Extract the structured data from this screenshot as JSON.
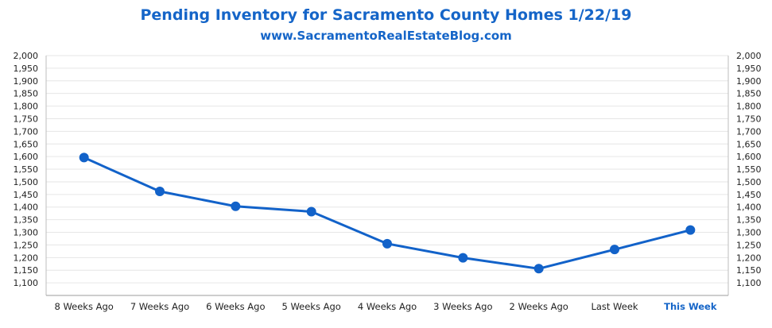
{
  "chart_data": {
    "type": "line",
    "title": "Pending Inventory for Sacramento County Homes 1/22/19",
    "subtitle": "www.SacramentoRealEstateBlog.com",
    "categories": [
      "8 Weeks Ago",
      "7 Weeks Ago",
      "6 Weeks Ago",
      "5 Weeks Ago",
      "4 Weeks Ago",
      "3 Weeks Ago",
      "2 Weeks Ago",
      "Last Week",
      "This Week"
    ],
    "series": [
      {
        "values": [
          1596,
          1462,
          1403,
          1382,
          1255,
          1199,
          1156,
          1232,
          1309
        ]
      }
    ],
    "ylim": [
      1050,
      2000
    ],
    "yticks": [
      1100,
      1150,
      1200,
      1250,
      1300,
      1350,
      1400,
      1450,
      1500,
      1550,
      1600,
      1650,
      1700,
      1750,
      1800,
      1850,
      1900,
      1950,
      2000
    ],
    "yaxis_both_sides": true,
    "grid": true,
    "highlight_category": "This Week",
    "colors": {
      "line": "#1262c9",
      "title": "#1565c8",
      "grid": "#e6e6e6"
    }
  }
}
